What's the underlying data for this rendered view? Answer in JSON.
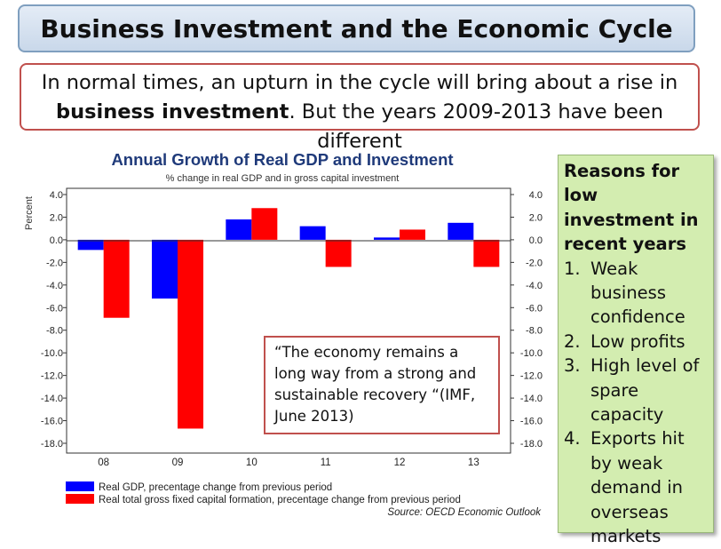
{
  "slide": {
    "title": "Business Investment and the Economic Cycle",
    "intro": {
      "part1": "In normal times, an upturn in the cycle will bring about a rise in",
      "bold": "business investment",
      "part2": ". But the years 2009-2013 have been different"
    },
    "quote": "“The economy remains a long way from a strong and sustainable recovery “(IMF, June 2013)",
    "reasons": {
      "heading": "Reasons for low investment in recent years",
      "items": [
        {
          "num": "1.",
          "text": "Weak business confidence"
        },
        {
          "num": "2.",
          "text": "Low profits"
        },
        {
          "num": "3.",
          "text": "High level of spare capacity"
        },
        {
          "num": "4.",
          "text": "Exports hit by weak demand in overseas markets"
        }
      ]
    }
  },
  "chart_data": {
    "type": "bar",
    "title": "Annual Growth of Real GDP and Investment",
    "subtitle": "% change in real GDP and in gross capital investment",
    "ylabel": "Percent",
    "categories": [
      "08",
      "09",
      "10",
      "11",
      "12",
      "13"
    ],
    "ylim": [
      -18,
      4
    ],
    "yticks": [
      "4.0",
      "2.0",
      "0.0",
      "-2.0",
      "-4.0",
      "-6.0",
      "-8.0",
      "-10.0",
      "-12.0",
      "-14.0",
      "-16.0",
      "-18.0"
    ],
    "grid": false,
    "series": [
      {
        "name": "Real GDP, precentage change from previous period",
        "color": "#0000ff",
        "values": [
          -0.9,
          -5.2,
          1.8,
          1.2,
          0.2,
          1.5
        ]
      },
      {
        "name": "Real total gross fixed capital formation, precentage change from previous period",
        "color": "#ff0000",
        "values": [
          -6.9,
          -16.7,
          2.8,
          -2.4,
          0.9,
          -2.4
        ]
      }
    ],
    "source": "Source: OECD Economic Outlook"
  }
}
